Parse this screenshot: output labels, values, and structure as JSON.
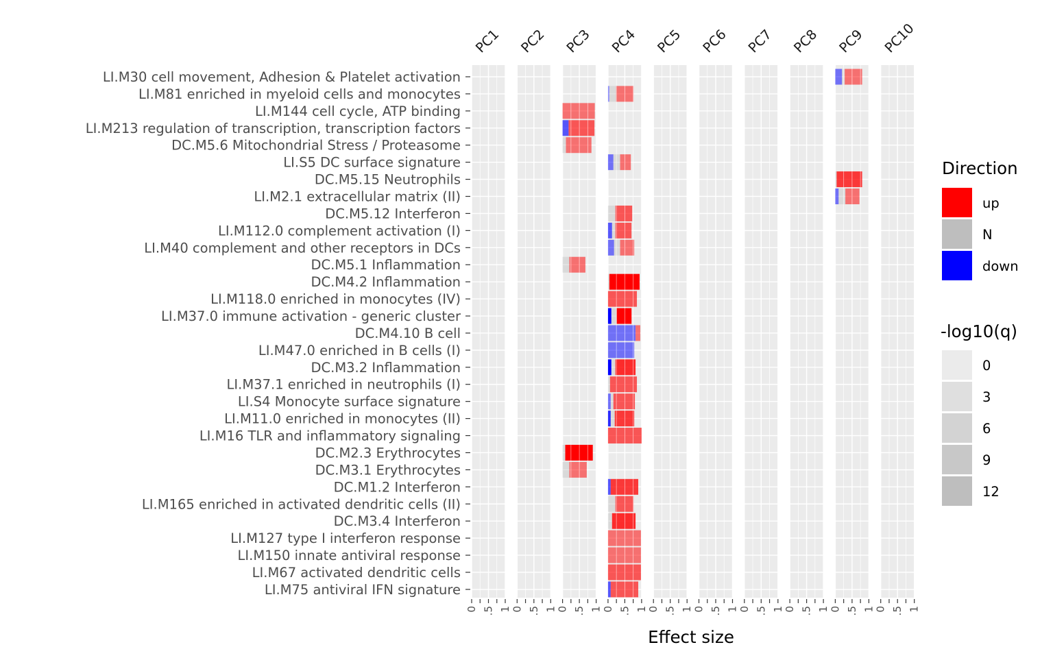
{
  "chart_data": {
    "type": "bar",
    "xlabel": "Effect size",
    "xlim": [
      0,
      1
    ],
    "x_ticks": [
      "0",
      ".5",
      "1"
    ],
    "facets": [
      "PC1",
      "PC2",
      "PC3",
      "PC4",
      "PC5",
      "PC6",
      "PC7",
      "PC8",
      "PC9",
      "PC10"
    ],
    "modules": [
      "LI.M30 cell movement, Adhesion & Platelet activation",
      "LI.M81 enriched in myeloid cells and monocytes",
      "LI.M144 cell cycle, ATP binding",
      "LI.M213 regulation of transcription, transcription factors",
      "DC.M5.6 Mitochondrial Stress / Proteasome",
      "LI.S5 DC surface signature",
      "DC.M5.15 Neutrophils",
      "LI.M2.1 extracellular matrix (II)",
      "DC.M5.12 Interferon",
      "LI.M112.0 complement activation (I)",
      "LI.M40 complement and other receptors in DCs",
      "DC.M5.1 Inflammation",
      "DC.M4.2 Inflammation",
      "LI.M118.0 enriched in monocytes (IV)",
      "LI.M37.0 immune activation - generic cluster",
      "DC.M4.10 B cell",
      "LI.M47.0 enriched in B cells (I)",
      "DC.M3.2 Inflammation",
      "LI.M37.1 enriched in neutrophils (I)",
      "LI.S4 Monocyte surface signature",
      "LI.M11.0 enriched in monocytes (II)",
      "LI.M16 TLR and inflammatory signaling",
      "DC.M2.3 Erythrocytes",
      "DC.M3.1 Erythrocytes",
      "DC.M1.2 Interferon",
      "LI.M165 enriched in activated dendritic cells (II)",
      "DC.M3.4 Interferon",
      "LI.M127 type I interferon response",
      "LI.M150 innate antiviral response",
      "LI.M67 activated dendritic cells",
      "LI.M75 antiviral IFN signature"
    ],
    "bars": [
      {
        "pc": "PC9",
        "row": 0,
        "segments": [
          {
            "dir": "down",
            "value": 0.2,
            "q": 4
          },
          {
            "dir": "N",
            "value": 0.08,
            "q": 2
          },
          {
            "dir": "up",
            "value": 0.52,
            "q": 4
          }
        ]
      },
      {
        "pc": "PC4",
        "row": 1,
        "segments": [
          {
            "dir": "down",
            "value": 0.04,
            "q": 2
          },
          {
            "dir": "N",
            "value": 0.2,
            "q": 2
          },
          {
            "dir": "up",
            "value": 0.52,
            "q": 4
          }
        ]
      },
      {
        "pc": "PC3",
        "row": 2,
        "segments": [
          {
            "dir": "up",
            "value": 0.96,
            "q": 4
          }
        ]
      },
      {
        "pc": "PC3",
        "row": 3,
        "segments": [
          {
            "dir": "down",
            "value": 0.18,
            "q": 6
          },
          {
            "dir": "up",
            "value": 0.77,
            "q": 6
          }
        ]
      },
      {
        "pc": "PC3",
        "row": 4,
        "segments": [
          {
            "dir": "N",
            "value": 0.1,
            "q": 2
          },
          {
            "dir": "up",
            "value": 0.76,
            "q": 4
          }
        ]
      },
      {
        "pc": "PC4",
        "row": 5,
        "segments": [
          {
            "dir": "down",
            "value": 0.16,
            "q": 4
          },
          {
            "dir": "N",
            "value": 0.2,
            "q": 2
          },
          {
            "dir": "up",
            "value": 0.32,
            "q": 4
          }
        ]
      },
      {
        "pc": "PC9",
        "row": 6,
        "segments": [
          {
            "dir": "N",
            "value": 0.04,
            "q": 2
          },
          {
            "dir": "up",
            "value": 0.76,
            "q": 8
          }
        ]
      },
      {
        "pc": "PC9",
        "row": 7,
        "segments": [
          {
            "dir": "down",
            "value": 0.1,
            "q": 4
          },
          {
            "dir": "N",
            "value": 0.2,
            "q": 2
          },
          {
            "dir": "up",
            "value": 0.42,
            "q": 4
          }
        ]
      },
      {
        "pc": "PC4",
        "row": 8,
        "segments": [
          {
            "dir": "N",
            "value": 0.22,
            "q": 2
          },
          {
            "dir": "up",
            "value": 0.5,
            "q": 6
          }
        ]
      },
      {
        "pc": "PC4",
        "row": 9,
        "segments": [
          {
            "dir": "down",
            "value": 0.12,
            "q": 6
          },
          {
            "dir": "N",
            "value": 0.1,
            "q": 2
          },
          {
            "dir": "up",
            "value": 0.48,
            "q": 6
          }
        ]
      },
      {
        "pc": "PC4",
        "row": 10,
        "segments": [
          {
            "dir": "down",
            "value": 0.18,
            "q": 4
          },
          {
            "dir": "N",
            "value": 0.18,
            "q": 2
          },
          {
            "dir": "up",
            "value": 0.42,
            "q": 4
          }
        ]
      },
      {
        "pc": "PC3",
        "row": 11,
        "segments": [
          {
            "dir": "N",
            "value": 0.2,
            "q": 2
          },
          {
            "dir": "up",
            "value": 0.48,
            "q": 4
          }
        ]
      },
      {
        "pc": "PC4",
        "row": 12,
        "segments": [
          {
            "dir": "N",
            "value": 0.04,
            "q": 2
          },
          {
            "dir": "up",
            "value": 0.9,
            "q": 12
          }
        ]
      },
      {
        "pc": "PC4",
        "row": 13,
        "segments": [
          {
            "dir": "up",
            "value": 0.86,
            "q": 6
          }
        ]
      },
      {
        "pc": "PC4",
        "row": 14,
        "segments": [
          {
            "dir": "down",
            "value": 0.1,
            "q": 12
          },
          {
            "dir": "N",
            "value": 0.16,
            "q": 3
          },
          {
            "dir": "up",
            "value": 0.44,
            "q": 12
          }
        ]
      },
      {
        "pc": "PC4",
        "row": 15,
        "segments": [
          {
            "dir": "down",
            "value": 0.82,
            "q": 4
          },
          {
            "dir": "up",
            "value": 0.14,
            "q": 4
          }
        ]
      },
      {
        "pc": "PC4",
        "row": 16,
        "segments": [
          {
            "dir": "down",
            "value": 0.78,
            "q": 4
          }
        ]
      },
      {
        "pc": "PC4",
        "row": 17,
        "segments": [
          {
            "dir": "down",
            "value": 0.1,
            "q": 12
          },
          {
            "dir": "N",
            "value": 0.12,
            "q": 2
          },
          {
            "dir": "up",
            "value": 0.6,
            "q": 9
          }
        ]
      },
      {
        "pc": "PC4",
        "row": 18,
        "segments": [
          {
            "dir": "N",
            "value": 0.06,
            "q": 2
          },
          {
            "dir": "up",
            "value": 0.8,
            "q": 6
          }
        ]
      },
      {
        "pc": "PC4",
        "row": 19,
        "segments": [
          {
            "dir": "down",
            "value": 0.08,
            "q": 4
          },
          {
            "dir": "N",
            "value": 0.08,
            "q": 2
          },
          {
            "dir": "up",
            "value": 0.64,
            "q": 6
          }
        ]
      },
      {
        "pc": "PC4",
        "row": 20,
        "segments": [
          {
            "dir": "down",
            "value": 0.08,
            "q": 9
          },
          {
            "dir": "N",
            "value": 0.12,
            "q": 2
          },
          {
            "dir": "up",
            "value": 0.58,
            "q": 8
          }
        ]
      },
      {
        "pc": "PC4",
        "row": 21,
        "segments": [
          {
            "dir": "up",
            "value": 1.0,
            "q": 6
          }
        ]
      },
      {
        "pc": "PC3",
        "row": 22,
        "segments": [
          {
            "dir": "N",
            "value": 0.08,
            "q": 2
          },
          {
            "dir": "up",
            "value": 0.82,
            "q": 12
          }
        ]
      },
      {
        "pc": "PC3",
        "row": 23,
        "segments": [
          {
            "dir": "N",
            "value": 0.2,
            "q": 2
          },
          {
            "dir": "up",
            "value": 0.52,
            "q": 4
          }
        ]
      },
      {
        "pc": "PC4",
        "row": 24,
        "segments": [
          {
            "dir": "down",
            "value": 0.08,
            "q": 6
          },
          {
            "dir": "up",
            "value": 0.82,
            "q": 8
          }
        ]
      },
      {
        "pc": "PC4",
        "row": 25,
        "segments": [
          {
            "dir": "N",
            "value": 0.22,
            "q": 2
          },
          {
            "dir": "up",
            "value": 0.54,
            "q": 6
          }
        ]
      },
      {
        "pc": "PC4",
        "row": 26,
        "segments": [
          {
            "dir": "N",
            "value": 0.12,
            "q": 2
          },
          {
            "dir": "up",
            "value": 0.7,
            "q": 9
          }
        ]
      },
      {
        "pc": "PC4",
        "row": 27,
        "segments": [
          {
            "dir": "up",
            "value": 0.98,
            "q": 4
          }
        ]
      },
      {
        "pc": "PC4",
        "row": 28,
        "segments": [
          {
            "dir": "up",
            "value": 0.98,
            "q": 4
          }
        ]
      },
      {
        "pc": "PC4",
        "row": 29,
        "segments": [
          {
            "dir": "up",
            "value": 0.98,
            "q": 6
          }
        ]
      },
      {
        "pc": "PC4",
        "row": 30,
        "segments": [
          {
            "dir": "down",
            "value": 0.08,
            "q": 6
          },
          {
            "dir": "up",
            "value": 0.82,
            "q": 6
          }
        ]
      }
    ],
    "legend_direction": {
      "title": "Direction",
      "entries": [
        {
          "label": "up",
          "color": "#ff0000"
        },
        {
          "label": "N",
          "color": "#bebebe"
        },
        {
          "label": "down",
          "color": "#0000ff"
        }
      ]
    },
    "legend_q": {
      "title": "-log10(q)",
      "levels": [
        "0",
        "3",
        "6",
        "9",
        "12"
      ]
    },
    "colors": {
      "up": "#ff0000",
      "N": "#bebebe",
      "down": "#0000ff",
      "panel_bg": "#ebebeb",
      "grid": "#ffffff"
    }
  }
}
